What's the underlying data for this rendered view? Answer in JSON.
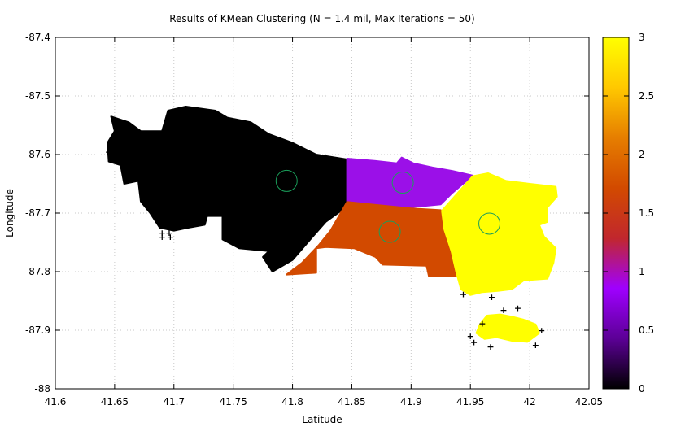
{
  "chart_data": {
    "type": "scatter",
    "title": "Results of KMean Clustering (N = 1.4 mil, Max Iterations = 50)",
    "xlabel": "Latitude",
    "ylabel": "Longitude",
    "xlim": [
      41.6,
      42.05
    ],
    "ylim": [
      -88.0,
      -87.4
    ],
    "x_ticks": [
      "41.6",
      "41.65",
      "41.7",
      "41.75",
      "41.8",
      "41.85",
      "41.9",
      "41.95",
      "42",
      "42.05"
    ],
    "y_ticks": [
      "-88",
      "-87.9",
      "-87.8",
      "-87.7",
      "-87.6",
      "-87.5",
      "-87.4"
    ],
    "grid": true,
    "colorbar": {
      "range": [
        0,
        3
      ],
      "ticks": [
        "0",
        "0.5",
        "1",
        "1.5",
        "2",
        "2.5",
        "3"
      ],
      "colors": [
        "#000000",
        "#5c0096",
        "#9f00ff",
        "#c1272d",
        "#d24a00",
        "#e67e00",
        "#ffc800",
        "#ffff00"
      ]
    },
    "clusters": [
      {
        "cluster": 0,
        "color": "#000000",
        "centroid": [
          41.795,
          -87.645
        ]
      },
      {
        "cluster": 1,
        "color": "#9b10e8",
        "centroid": [
          41.893,
          -87.648
        ]
      },
      {
        "cluster": 2,
        "color": "#d24a00",
        "centroid": [
          41.882,
          -87.732
        ]
      },
      {
        "cluster": 3,
        "color": "#ffff00",
        "centroid": [
          41.966,
          -87.718
        ]
      }
    ],
    "centroid_marker_color": "#1a9e5a"
  }
}
